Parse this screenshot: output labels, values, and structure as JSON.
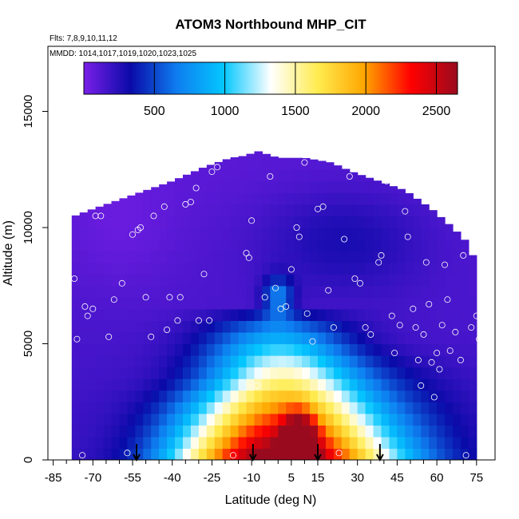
{
  "chart_data": {
    "type": "heatmap",
    "title": "ATOM3 Northbound MHP_CIT",
    "subtitle_flights": "Flts: 7,8,9,10,11,12",
    "subtitle_dates": "MMDD: 1014,1017,1019,1020,1023,1025",
    "xlabel": "Latitude (deg N)",
    "ylabel": "Altitude (m)",
    "xlim": [
      -87,
      82
    ],
    "ylim": [
      0,
      17800
    ],
    "x_ticks": [
      -85,
      -70,
      -55,
      -40,
      -25,
      -10,
      5,
      15,
      30,
      45,
      60,
      75
    ],
    "x_tick_labels": [
      "-85",
      "-70",
      "-55",
      "-40",
      "-25",
      "-10",
      "5",
      "15",
      "30",
      "45",
      "60",
      "75"
    ],
    "y_ticks": [
      0,
      5000,
      10000,
      15000
    ],
    "y_tick_labels": [
      "0",
      "5000",
      "10000",
      "15000"
    ],
    "colorbar": {
      "range": [
        0,
        2650
      ],
      "ticks": [
        500,
        1000,
        1500,
        2000,
        2500
      ],
      "tick_labels": [
        "500",
        "1000",
        "1500",
        "2000",
        "2500"
      ],
      "stops": [
        "#7a1fe8",
        "#0a0aa8",
        "#0e7ef0",
        "#04c7ff",
        "#ffffff",
        "#ffec50",
        "#ffa600",
        "#ff0000",
        "#9a0a1e"
      ]
    },
    "column_tops_m": [
      [
        -77,
        10500
      ],
      [
        -70,
        10800
      ],
      [
        -60,
        11200
      ],
      [
        -50,
        11600
      ],
      [
        -40,
        12000
      ],
      [
        -28,
        12600
      ],
      [
        -18,
        13000
      ],
      [
        -12,
        13100
      ],
      [
        -8,
        13300
      ],
      [
        0,
        13000
      ],
      [
        10,
        13000
      ],
      [
        20,
        12800
      ],
      [
        28,
        12400
      ],
      [
        38,
        12000
      ],
      [
        48,
        11600
      ],
      [
        58,
        10800
      ],
      [
        66,
        10000
      ],
      [
        72,
        9300
      ],
      [
        76,
        8000
      ]
    ],
    "arrow_latitudes": [
      -53.5,
      -9.5,
      15,
      38.5
    ],
    "sample_points": [
      [
        -77,
        7800
      ],
      [
        -76,
        5200
      ],
      [
        -74,
        200
      ],
      [
        -73,
        6600
      ],
      [
        -72,
        6200
      ],
      [
        -70,
        6500
      ],
      [
        -69,
        10500
      ],
      [
        -67,
        10500
      ],
      [
        -64,
        5300
      ],
      [
        -62,
        6900
      ],
      [
        -59,
        7600
      ],
      [
        -57,
        300
      ],
      [
        -55,
        9700
      ],
      [
        -53,
        9900
      ],
      [
        -52,
        10000
      ],
      [
        -50,
        7000
      ],
      [
        -48,
        5300
      ],
      [
        -47,
        10500
      ],
      [
        -43,
        10900
      ],
      [
        -42,
        5600
      ],
      [
        -41,
        7000
      ],
      [
        -38,
        6000
      ],
      [
        -37,
        7000
      ],
      [
        -35,
        11000
      ],
      [
        -33,
        11100
      ],
      [
        -31,
        11700
      ],
      [
        -30,
        6000
      ],
      [
        -28,
        8000
      ],
      [
        -26,
        6000
      ],
      [
        -25,
        12400
      ],
      [
        -23,
        12600
      ],
      [
        -19,
        13200
      ],
      [
        -17,
        200
      ],
      [
        -12,
        8900
      ],
      [
        -11,
        8700
      ],
      [
        -10,
        10300
      ],
      [
        -8,
        3200
      ],
      [
        -5,
        7000
      ],
      [
        -3,
        12200
      ],
      [
        -1,
        7400
      ],
      [
        1,
        6500
      ],
      [
        3,
        6600
      ],
      [
        5,
        8200
      ],
      [
        7,
        10000
      ],
      [
        8,
        9600
      ],
      [
        10,
        12800
      ],
      [
        11,
        6300
      ],
      [
        13,
        5100
      ],
      [
        15,
        10800
      ],
      [
        17,
        10900
      ],
      [
        19,
        7300
      ],
      [
        21,
        5700
      ],
      [
        23,
        300
      ],
      [
        25,
        9500
      ],
      [
        27,
        12200
      ],
      [
        29,
        7800
      ],
      [
        31,
        7600
      ],
      [
        33,
        5700
      ],
      [
        35,
        5400
      ],
      [
        38,
        8500
      ],
      [
        39,
        8800
      ],
      [
        41,
        12000
      ],
      [
        43,
        6200
      ],
      [
        44,
        4600
      ],
      [
        46,
        5800
      ],
      [
        48,
        10700
      ],
      [
        49,
        9600
      ],
      [
        51,
        6500
      ],
      [
        52,
        5700
      ],
      [
        53,
        4300
      ],
      [
        54,
        3200
      ],
      [
        55,
        5400
      ],
      [
        56,
        8500
      ],
      [
        57,
        6700
      ],
      [
        58,
        4200
      ],
      [
        59,
        2700
      ],
      [
        60,
        4600
      ],
      [
        61,
        3900
      ],
      [
        62,
        5800
      ],
      [
        63,
        8400
      ],
      [
        64,
        6900
      ],
      [
        65,
        4700
      ],
      [
        67,
        5500
      ],
      [
        69,
        4300
      ],
      [
        70,
        8800
      ],
      [
        71,
        200
      ],
      [
        73,
        5700
      ],
      [
        74,
        9000
      ],
      [
        75,
        6200
      ],
      [
        76,
        5200
      ],
      [
        77,
        300
      ]
    ]
  }
}
